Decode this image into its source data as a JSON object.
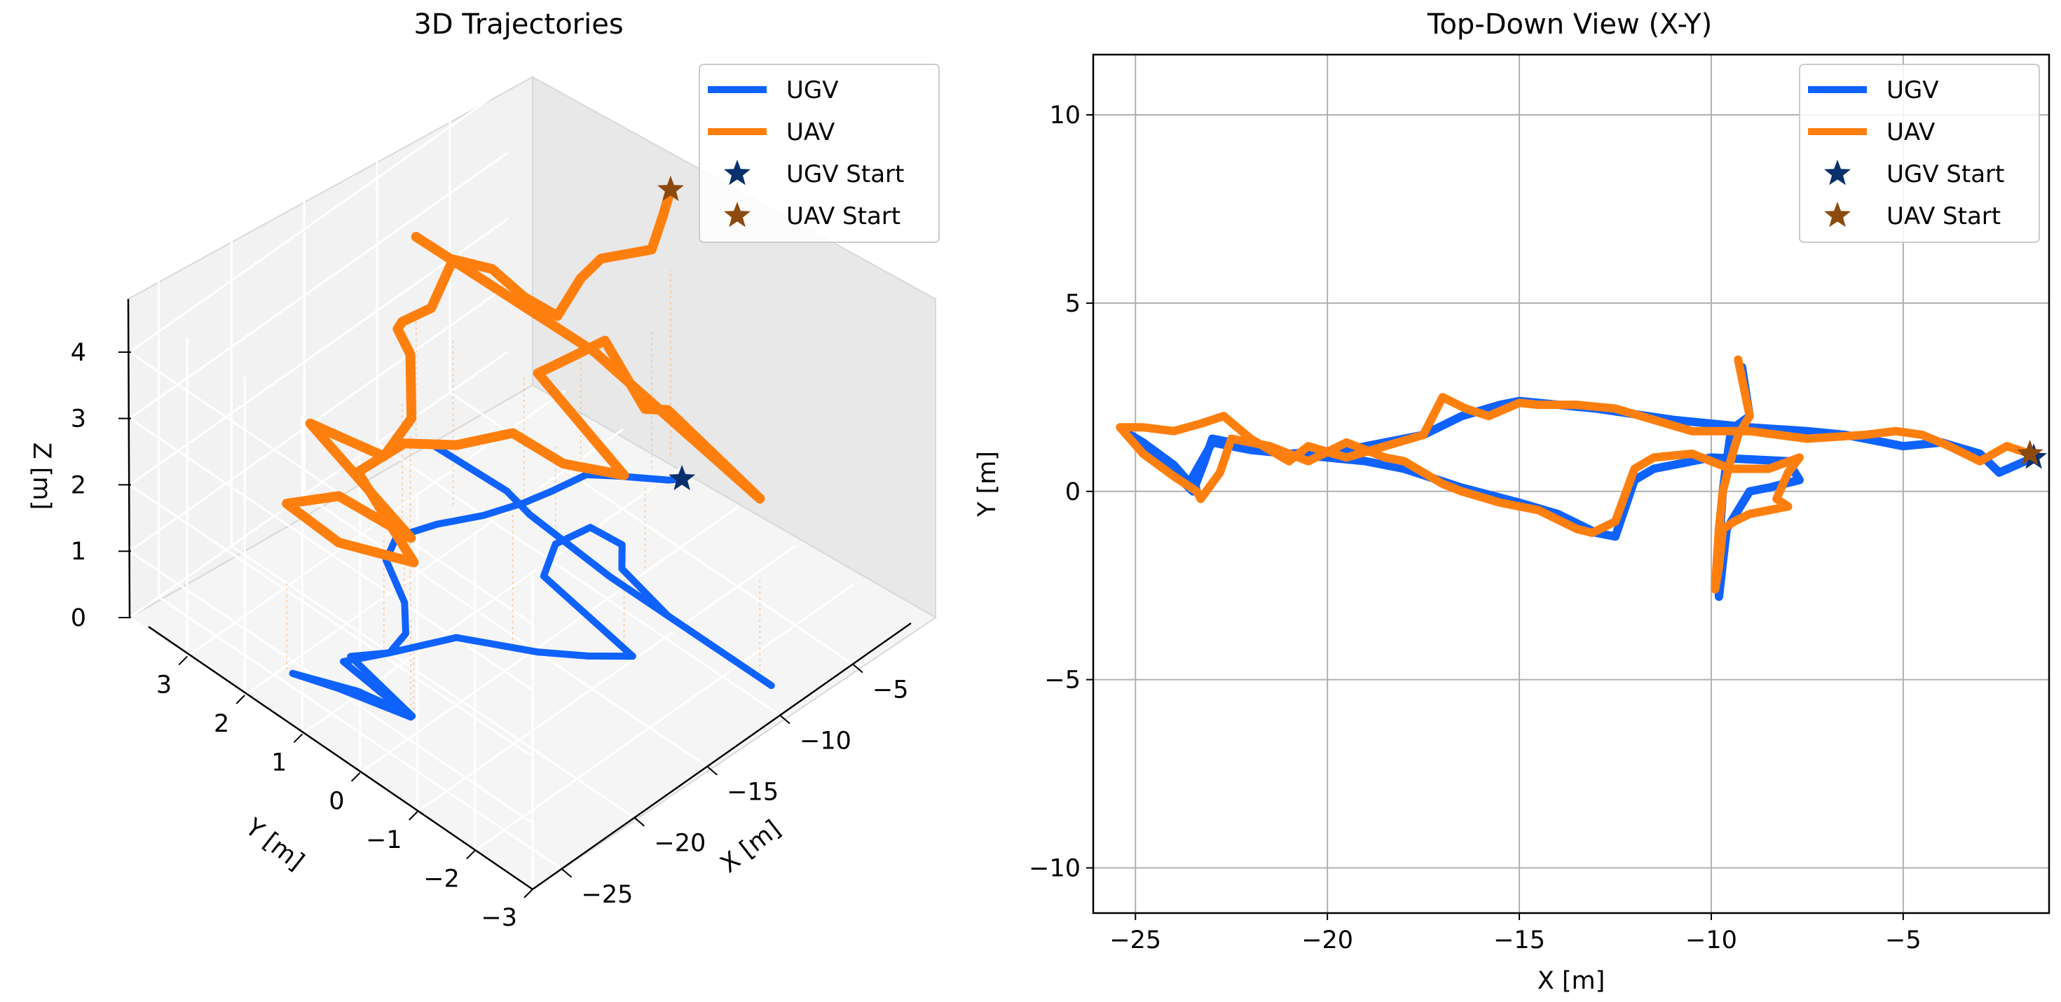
{
  "chart_data": [
    {
      "type": "line",
      "projection": "3d",
      "title": "3D Trajectories",
      "xlabel": "X [m]",
      "ylabel": "Y [m]",
      "zlabel": "Z [m]",
      "xlim": [
        -27,
        -1
      ],
      "ylim": [
        -3,
        4
      ],
      "zlim": [
        0,
        4.8
      ],
      "x_ticks": [
        "−25",
        "−20",
        "−15",
        "−10",
        "−5"
      ],
      "x_tick_values": [
        -25,
        -20,
        -15,
        -10,
        -5
      ],
      "y_ticks": [
        "−3",
        "−2",
        "−1",
        "0",
        "1",
        "2",
        "3"
      ],
      "y_tick_values": [
        -3,
        -2,
        -1,
        0,
        1,
        2,
        3
      ],
      "z_ticks": [
        "0",
        "1",
        "2",
        "3",
        "4"
      ],
      "z_tick_values": [
        0,
        1,
        2,
        3,
        4
      ],
      "grid": true,
      "legend_position": "top-right",
      "legend": [
        "UGV",
        "UAV",
        "UGV Start",
        "UAV Start"
      ],
      "series": [
        {
          "name": "UGV",
          "color": "#0f62fe",
          "points": [
            [
              -2.5,
              0.6,
              0.3
            ],
            [
              -3.0,
              0.7,
              0.3
            ],
            [
              -4.5,
              1.2,
              0.3
            ],
            [
              -5.5,
              1.5,
              0.3
            ],
            [
              -7.5,
              1.6,
              0.3
            ],
            [
              -9.0,
              1.7,
              0.3
            ],
            [
              -11.0,
              1.9,
              0.3
            ],
            [
              -13.0,
              2.2,
              0.3
            ],
            [
              -15.0,
              2.4,
              0.3
            ],
            [
              -16.5,
              2.2,
              0.3
            ],
            [
              -18.0,
              1.5,
              0.3
            ],
            [
              -19.5,
              1.1,
              0.3
            ],
            [
              -21.0,
              1.0,
              0.3
            ],
            [
              -22.5,
              1.3,
              0.3
            ],
            [
              -23.4,
              0.0,
              0.3
            ],
            [
              -24.0,
              0.8,
              0.3
            ],
            [
              -25.3,
              1.6,
              0.3
            ],
            [
              -24.5,
              1.0,
              0.3
            ],
            [
              -23.5,
              0.0,
              0.3
            ],
            [
              -23.0,
              1.3,
              0.3
            ],
            [
              -21.0,
              1.0,
              0.3
            ],
            [
              -18.0,
              0.6,
              0.3
            ],
            [
              -16.0,
              -0.3,
              0.3
            ],
            [
              -14.5,
              -0.8,
              0.3
            ],
            [
              -13.0,
              -1.2,
              0.3
            ],
            [
              -12.0,
              0.6,
              0.3
            ],
            [
              -10.0,
              0.9,
              0.3
            ],
            [
              -8.0,
              0.8,
              0.3
            ],
            [
              -7.8,
              0.3,
              0.3
            ],
            [
              -9.0,
              0.0,
              0.3
            ],
            [
              -9.8,
              -1.0,
              0.3
            ],
            [
              -9.8,
              -2.8,
              0.3
            ],
            [
              -9.8,
              0.0,
              0.3
            ],
            [
              -9.4,
              1.5,
              0.3
            ],
            [
              -9.0,
              2.0,
              0.3
            ],
            [
              -9.2,
              3.3,
              0.3
            ]
          ]
        },
        {
          "name": "UAV",
          "color": "#ff7f0e",
          "points": [
            [
              -1.7,
              1.0,
              4.3
            ],
            [
              -2.2,
              1.0,
              4.0
            ],
            [
              -3.0,
              1.0,
              3.6
            ],
            [
              -4.5,
              1.5,
              3.4
            ],
            [
              -5.5,
              1.6,
              3.2
            ],
            [
              -7.5,
              1.5,
              3.0
            ],
            [
              -9.0,
              1.7,
              3.4
            ],
            [
              -10.0,
              2.0,
              3.8
            ],
            [
              -11.5,
              2.3,
              4.0
            ],
            [
              -13.0,
              2.3,
              3.5
            ],
            [
              -15.0,
              2.3,
              3.6
            ],
            [
              -16.5,
              2.0,
              3.9
            ],
            [
              -18.0,
              1.4,
              4.1
            ],
            [
              -19.5,
              1.0,
              3.6
            ],
            [
              -21.0,
              1.1,
              3.2
            ],
            [
              -22.5,
              2.0,
              3.4
            ],
            [
              -23.5,
              0.0,
              3.0
            ],
            [
              -24.5,
              1.0,
              3.2
            ],
            [
              -25.3,
              1.7,
              2.8
            ],
            [
              -24.5,
              1.0,
              2.5
            ],
            [
              -23.3,
              0.0,
              2.6
            ],
            [
              -22.0,
              1.3,
              3.0
            ],
            [
              -20.0,
              1.0,
              3.3
            ],
            [
              -18.0,
              0.6,
              3.2
            ],
            [
              -16.5,
              0.0,
              3.5
            ],
            [
              -15.0,
              -0.5,
              3.1
            ],
            [
              -13.2,
              -1.1,
              3.0
            ],
            [
              -12.0,
              0.7,
              3.3
            ],
            [
              -10.0,
              0.9,
              3.0
            ],
            [
              -7.8,
              0.6,
              3.2
            ],
            [
              -8.2,
              -0.2,
              2.7
            ],
            [
              -9.8,
              -1.0,
              3.4
            ],
            [
              -9.8,
              -2.6,
              3.0
            ],
            [
              -9.7,
              0.3,
              3.5
            ],
            [
              -9.3,
              3.5,
              3.3
            ]
          ]
        }
      ],
      "markers": [
        {
          "name": "UGV Start",
          "x": -2.5,
          "y": 0.6,
          "z": 0.3,
          "color": "#08306b"
        },
        {
          "name": "UAV Start",
          "x": -1.7,
          "y": 1.0,
          "z": 4.3,
          "color": "#8c4a0f"
        }
      ]
    },
    {
      "type": "line",
      "title": "Top-Down View (X-Y)",
      "xlabel": "X [m]",
      "ylabel": "Y [m]",
      "xlim": [
        -26.1,
        -1.2
      ],
      "ylim": [
        -11.2,
        11.6
      ],
      "x_ticks": [
        "−25",
        "−20",
        "−15",
        "−10",
        "−5"
      ],
      "x_tick_values": [
        -25,
        -20,
        -15,
        -10,
        -5
      ],
      "y_ticks": [
        "10",
        "5",
        "0",
        "−5",
        "−10"
      ],
      "y_tick_values": [
        10,
        5,
        0,
        -5,
        -10
      ],
      "grid": true,
      "legend_position": "top-right",
      "legend": [
        "UGV",
        "UAV",
        "UGV Start",
        "UAV Start"
      ],
      "series": [
        {
          "name": "UGV",
          "color": "#0f62fe",
          "x": [
            -1.6,
            -2.5,
            -3.0,
            -4.0,
            -5.0,
            -6.5,
            -7.5,
            -9.0,
            -11.0,
            -13.0,
            -14.5,
            -15.0,
            -15.5,
            -16.5,
            -17.5,
            -18.5,
            -19.5,
            -21.0,
            -22.0,
            -23.0,
            -23.5,
            -23.4,
            -24.0,
            -24.8,
            -25.3,
            -24.5,
            -23.5,
            -23.2,
            -23.0,
            -21.0,
            -19.0,
            -18.0,
            -16.5,
            -15.0,
            -14.0,
            -13.0,
            -12.5,
            -12.0,
            -11.5,
            -10.0,
            -8.0,
            -7.7,
            -8.5,
            -9.0,
            -9.6,
            -9.8,
            -9.8,
            -9.7,
            -9.6,
            -9.5,
            -9.4,
            -9.0,
            -9.2
          ],
          "y": [
            0.9,
            0.5,
            1.0,
            1.3,
            1.2,
            1.5,
            1.6,
            1.7,
            1.9,
            2.2,
            2.35,
            2.4,
            2.3,
            2.0,
            1.5,
            1.3,
            1.1,
            1.0,
            1.1,
            1.3,
            0.4,
            0.0,
            0.7,
            1.3,
            1.6,
            1.0,
            0.0,
            0.8,
            1.4,
            1.0,
            0.8,
            0.6,
            0.1,
            -0.3,
            -0.6,
            -1.1,
            -1.2,
            0.3,
            0.6,
            0.9,
            0.8,
            0.3,
            0.1,
            0.0,
            -1.0,
            -2.8,
            -1.5,
            0.0,
            0.8,
            1.5,
            1.7,
            2.0,
            3.3
          ]
        },
        {
          "name": "UAV",
          "color": "#ff7f0e",
          "x": [
            -1.7,
            -2.3,
            -3.0,
            -3.8,
            -4.5,
            -5.2,
            -6.0,
            -7.5,
            -9.0,
            -10.5,
            -11.5,
            -12.5,
            -13.5,
            -14.5,
            -15.0,
            -15.8,
            -16.4,
            -17.0,
            -17.5,
            -18.5,
            -19.5,
            -20.5,
            -21.0,
            -22.0,
            -22.7,
            -23.3,
            -24.0,
            -24.8,
            -25.4,
            -24.8,
            -24.0,
            -23.4,
            -23.3,
            -22.8,
            -22.5,
            -21.5,
            -20.5,
            -19.5,
            -18.5,
            -18.0,
            -17.0,
            -16.5,
            -15.5,
            -14.5,
            -13.5,
            -13.1,
            -12.5,
            -12.0,
            -11.5,
            -10.5,
            -9.5,
            -8.5,
            -7.7,
            -8.0,
            -8.3,
            -8.0,
            -9.0,
            -9.4,
            -9.7,
            -9.8,
            -9.9,
            -9.8,
            -9.7,
            -9.5,
            -9.3,
            -9.0,
            -9.3
          ],
          "y": [
            1.0,
            1.2,
            0.8,
            1.2,
            1.5,
            1.6,
            1.5,
            1.4,
            1.6,
            1.6,
            1.9,
            2.2,
            2.3,
            2.3,
            2.35,
            2.0,
            2.2,
            2.5,
            1.5,
            1.2,
            0.9,
            1.2,
            0.8,
            1.4,
            2.0,
            1.8,
            1.6,
            1.7,
            1.7,
            1.0,
            0.4,
            0.0,
            -0.2,
            0.5,
            1.4,
            1.2,
            0.8,
            1.3,
            0.9,
            0.8,
            0.2,
            0.0,
            -0.3,
            -0.5,
            -1.0,
            -1.1,
            -0.8,
            0.6,
            0.9,
            1.0,
            0.6,
            0.6,
            0.9,
            0.5,
            -0.2,
            -0.4,
            -0.6,
            -0.8,
            -1.0,
            -2.0,
            -2.6,
            -1.0,
            0.0,
            0.8,
            1.5,
            2.0,
            3.5
          ]
        }
      ],
      "markers": [
        {
          "name": "UGV Start",
          "x": -1.6,
          "y": 0.9,
          "color": "#08306b"
        },
        {
          "name": "UAV Start",
          "x": -1.7,
          "y": 1.0,
          "color": "#8c4a0f"
        }
      ]
    }
  ]
}
